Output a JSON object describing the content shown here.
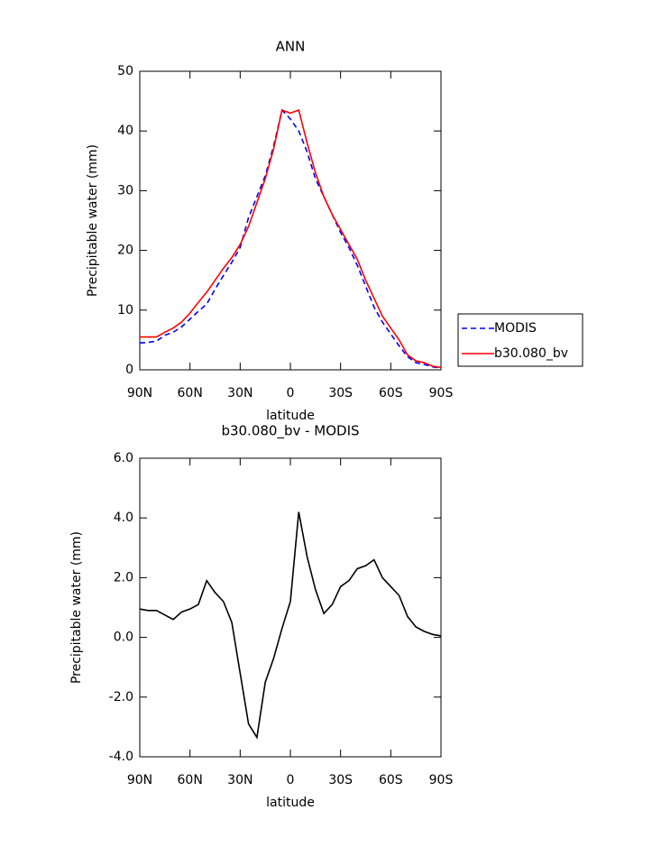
{
  "chart_data": [
    {
      "type": "line",
      "title": "ANN",
      "xlabel": "latitude",
      "ylabel": "Precipitable water (mm)",
      "x": [
        90,
        85,
        80,
        75,
        70,
        65,
        60,
        55,
        50,
        45,
        40,
        35,
        30,
        25,
        20,
        15,
        10,
        5,
        0,
        -5,
        -10,
        -15,
        -20,
        -25,
        -30,
        -35,
        -40,
        -45,
        -50,
        -55,
        -60,
        -65,
        -70,
        -75,
        -80,
        -85,
        -90
      ],
      "series": [
        {
          "name": "MODIS",
          "color": "#0000ff",
          "dash": "dashed",
          "values": [
            4.5,
            4.6,
            4.8,
            5.8,
            6.3,
            7.2,
            8.5,
            9.8,
            11,
            13.5,
            15.8,
            18,
            20.5,
            25.5,
            29,
            32.5,
            37.5,
            43.5,
            42,
            40,
            36.5,
            32,
            29,
            26,
            23,
            20.5,
            17.5,
            14,
            10.5,
            8,
            6,
            4,
            2.2,
            1.2,
            0.9,
            0.5,
            0.3
          ]
        },
        {
          "name": "b30.080_bv",
          "color": "#ff0000",
          "dash": "solid",
          "values": [
            5.5,
            5.5,
            5.5,
            6.3,
            7,
            8,
            9.5,
            11.3,
            13,
            15,
            17,
            18.8,
            21,
            24,
            28,
            32,
            37,
            43.5,
            43,
            43.5,
            38,
            33,
            29,
            26,
            23.5,
            21,
            18.5,
            15,
            12,
            9,
            7,
            5,
            2.5,
            1.5,
            1.2,
            0.6,
            0.4
          ]
        }
      ],
      "xlim": [
        90,
        -90
      ],
      "xticks": [
        {
          "value": 90,
          "label": "90N"
        },
        {
          "value": 60,
          "label": "60N"
        },
        {
          "value": 30,
          "label": "30N"
        },
        0,
        {
          "value": -30,
          "label": "30S"
        },
        {
          "value": -60,
          "label": "60S"
        },
        {
          "value": -90,
          "label": "90S"
        }
      ],
      "ylim": [
        0,
        50
      ],
      "yticks": [
        0,
        10,
        20,
        30,
        40,
        50
      ],
      "legend": "right"
    },
    {
      "type": "line",
      "title": "b30.080_bv - MODIS",
      "xlabel": "latitude",
      "ylabel": "Precipitable water (mm)",
      "x": [
        90,
        85,
        80,
        75,
        70,
        65,
        60,
        55,
        50,
        45,
        40,
        35,
        30,
        25,
        20,
        15,
        10,
        5,
        0,
        -5,
        -10,
        -15,
        -20,
        -25,
        -30,
        -35,
        -40,
        -45,
        -50,
        -55,
        -60,
        -65,
        -70,
        -75,
        -80,
        -85,
        -90
      ],
      "color": "#000000",
      "values": [
        0.95,
        0.9,
        0.9,
        0.75,
        0.6,
        0.85,
        0.95,
        1.1,
        1.9,
        1.5,
        1.2,
        0.5,
        -1.2,
        -2.9,
        -3.35,
        -1.5,
        -0.7,
        0.3,
        1.2,
        4.2,
        2.7,
        1.6,
        0.8,
        1.1,
        1.7,
        1.9,
        2.3,
        2.4,
        2.6,
        2.0,
        1.7,
        1.4,
        0.7,
        0.35,
        0.2,
        0.1,
        0.05
      ],
      "xlim": [
        90,
        -90
      ],
      "xticks": [
        {
          "value": 90,
          "label": "90N"
        },
        {
          "value": 60,
          "label": "60N"
        },
        {
          "value": 30,
          "label": "30N"
        },
        0,
        {
          "value": -30,
          "label": "30S"
        },
        {
          "value": -60,
          "label": "60S"
        },
        {
          "value": -90,
          "label": "90S"
        }
      ],
      "ylim": [
        -4,
        6
      ],
      "yticks": [
        {
          "value": -4,
          "label": "-4.0"
        },
        {
          "value": -2,
          "label": "-2.0"
        },
        {
          "value": 0,
          "label": "0.0"
        },
        {
          "value": 2,
          "label": "2.0"
        },
        {
          "value": 4,
          "label": "4.0"
        },
        {
          "value": 6,
          "label": "6.0"
        }
      ]
    }
  ]
}
